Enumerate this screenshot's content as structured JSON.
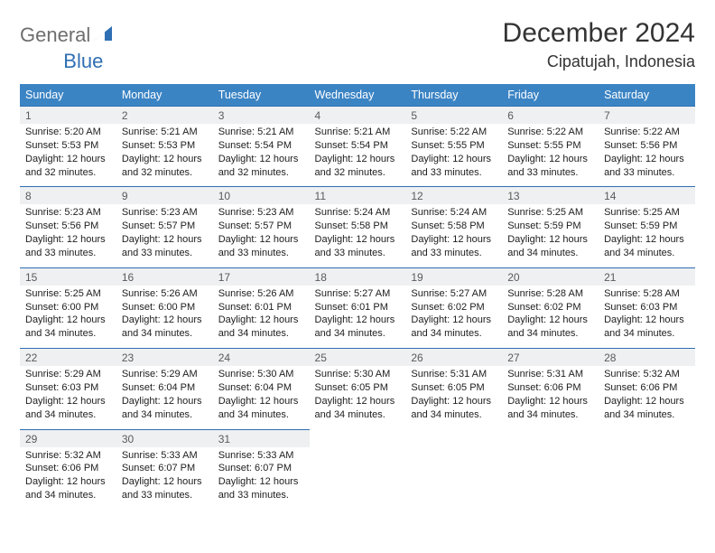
{
  "brand": {
    "part1": "General",
    "part2": "Blue"
  },
  "title": "December 2024",
  "location": "Cipatujah, Indonesia",
  "colors": {
    "header_bg": "#3b84c4",
    "header_text": "#ffffff",
    "numrow_bg": "#eef0f1",
    "numrow_border": "#2f6fb3",
    "title_color": "#333333",
    "brand_gray": "#6e6e6e",
    "brand_blue": "#2f6fb3"
  },
  "dow": [
    "Sunday",
    "Monday",
    "Tuesday",
    "Wednesday",
    "Thursday",
    "Friday",
    "Saturday"
  ],
  "weeks": [
    [
      {
        "n": "1",
        "sr": "Sunrise: 5:20 AM",
        "ss": "Sunset: 5:53 PM",
        "d1": "Daylight: 12 hours",
        "d2": "and 32 minutes."
      },
      {
        "n": "2",
        "sr": "Sunrise: 5:21 AM",
        "ss": "Sunset: 5:53 PM",
        "d1": "Daylight: 12 hours",
        "d2": "and 32 minutes."
      },
      {
        "n": "3",
        "sr": "Sunrise: 5:21 AM",
        "ss": "Sunset: 5:54 PM",
        "d1": "Daylight: 12 hours",
        "d2": "and 32 minutes."
      },
      {
        "n": "4",
        "sr": "Sunrise: 5:21 AM",
        "ss": "Sunset: 5:54 PM",
        "d1": "Daylight: 12 hours",
        "d2": "and 32 minutes."
      },
      {
        "n": "5",
        "sr": "Sunrise: 5:22 AM",
        "ss": "Sunset: 5:55 PM",
        "d1": "Daylight: 12 hours",
        "d2": "and 33 minutes."
      },
      {
        "n": "6",
        "sr": "Sunrise: 5:22 AM",
        "ss": "Sunset: 5:55 PM",
        "d1": "Daylight: 12 hours",
        "d2": "and 33 minutes."
      },
      {
        "n": "7",
        "sr": "Sunrise: 5:22 AM",
        "ss": "Sunset: 5:56 PM",
        "d1": "Daylight: 12 hours",
        "d2": "and 33 minutes."
      }
    ],
    [
      {
        "n": "8",
        "sr": "Sunrise: 5:23 AM",
        "ss": "Sunset: 5:56 PM",
        "d1": "Daylight: 12 hours",
        "d2": "and 33 minutes."
      },
      {
        "n": "9",
        "sr": "Sunrise: 5:23 AM",
        "ss": "Sunset: 5:57 PM",
        "d1": "Daylight: 12 hours",
        "d2": "and 33 minutes."
      },
      {
        "n": "10",
        "sr": "Sunrise: 5:23 AM",
        "ss": "Sunset: 5:57 PM",
        "d1": "Daylight: 12 hours",
        "d2": "and 33 minutes."
      },
      {
        "n": "11",
        "sr": "Sunrise: 5:24 AM",
        "ss": "Sunset: 5:58 PM",
        "d1": "Daylight: 12 hours",
        "d2": "and 33 minutes."
      },
      {
        "n": "12",
        "sr": "Sunrise: 5:24 AM",
        "ss": "Sunset: 5:58 PM",
        "d1": "Daylight: 12 hours",
        "d2": "and 33 minutes."
      },
      {
        "n": "13",
        "sr": "Sunrise: 5:25 AM",
        "ss": "Sunset: 5:59 PM",
        "d1": "Daylight: 12 hours",
        "d2": "and 34 minutes."
      },
      {
        "n": "14",
        "sr": "Sunrise: 5:25 AM",
        "ss": "Sunset: 5:59 PM",
        "d1": "Daylight: 12 hours",
        "d2": "and 34 minutes."
      }
    ],
    [
      {
        "n": "15",
        "sr": "Sunrise: 5:25 AM",
        "ss": "Sunset: 6:00 PM",
        "d1": "Daylight: 12 hours",
        "d2": "and 34 minutes."
      },
      {
        "n": "16",
        "sr": "Sunrise: 5:26 AM",
        "ss": "Sunset: 6:00 PM",
        "d1": "Daylight: 12 hours",
        "d2": "and 34 minutes."
      },
      {
        "n": "17",
        "sr": "Sunrise: 5:26 AM",
        "ss": "Sunset: 6:01 PM",
        "d1": "Daylight: 12 hours",
        "d2": "and 34 minutes."
      },
      {
        "n": "18",
        "sr": "Sunrise: 5:27 AM",
        "ss": "Sunset: 6:01 PM",
        "d1": "Daylight: 12 hours",
        "d2": "and 34 minutes."
      },
      {
        "n": "19",
        "sr": "Sunrise: 5:27 AM",
        "ss": "Sunset: 6:02 PM",
        "d1": "Daylight: 12 hours",
        "d2": "and 34 minutes."
      },
      {
        "n": "20",
        "sr": "Sunrise: 5:28 AM",
        "ss": "Sunset: 6:02 PM",
        "d1": "Daylight: 12 hours",
        "d2": "and 34 minutes."
      },
      {
        "n": "21",
        "sr": "Sunrise: 5:28 AM",
        "ss": "Sunset: 6:03 PM",
        "d1": "Daylight: 12 hours",
        "d2": "and 34 minutes."
      }
    ],
    [
      {
        "n": "22",
        "sr": "Sunrise: 5:29 AM",
        "ss": "Sunset: 6:03 PM",
        "d1": "Daylight: 12 hours",
        "d2": "and 34 minutes."
      },
      {
        "n": "23",
        "sr": "Sunrise: 5:29 AM",
        "ss": "Sunset: 6:04 PM",
        "d1": "Daylight: 12 hours",
        "d2": "and 34 minutes."
      },
      {
        "n": "24",
        "sr": "Sunrise: 5:30 AM",
        "ss": "Sunset: 6:04 PM",
        "d1": "Daylight: 12 hours",
        "d2": "and 34 minutes."
      },
      {
        "n": "25",
        "sr": "Sunrise: 5:30 AM",
        "ss": "Sunset: 6:05 PM",
        "d1": "Daylight: 12 hours",
        "d2": "and 34 minutes."
      },
      {
        "n": "26",
        "sr": "Sunrise: 5:31 AM",
        "ss": "Sunset: 6:05 PM",
        "d1": "Daylight: 12 hours",
        "d2": "and 34 minutes."
      },
      {
        "n": "27",
        "sr": "Sunrise: 5:31 AM",
        "ss": "Sunset: 6:06 PM",
        "d1": "Daylight: 12 hours",
        "d2": "and 34 minutes."
      },
      {
        "n": "28",
        "sr": "Sunrise: 5:32 AM",
        "ss": "Sunset: 6:06 PM",
        "d1": "Daylight: 12 hours",
        "d2": "and 34 minutes."
      }
    ],
    [
      {
        "n": "29",
        "sr": "Sunrise: 5:32 AM",
        "ss": "Sunset: 6:06 PM",
        "d1": "Daylight: 12 hours",
        "d2": "and 34 minutes."
      },
      {
        "n": "30",
        "sr": "Sunrise: 5:33 AM",
        "ss": "Sunset: 6:07 PM",
        "d1": "Daylight: 12 hours",
        "d2": "and 33 minutes."
      },
      {
        "n": "31",
        "sr": "Sunrise: 5:33 AM",
        "ss": "Sunset: 6:07 PM",
        "d1": "Daylight: 12 hours",
        "d2": "and 33 minutes."
      },
      null,
      null,
      null,
      null
    ]
  ]
}
